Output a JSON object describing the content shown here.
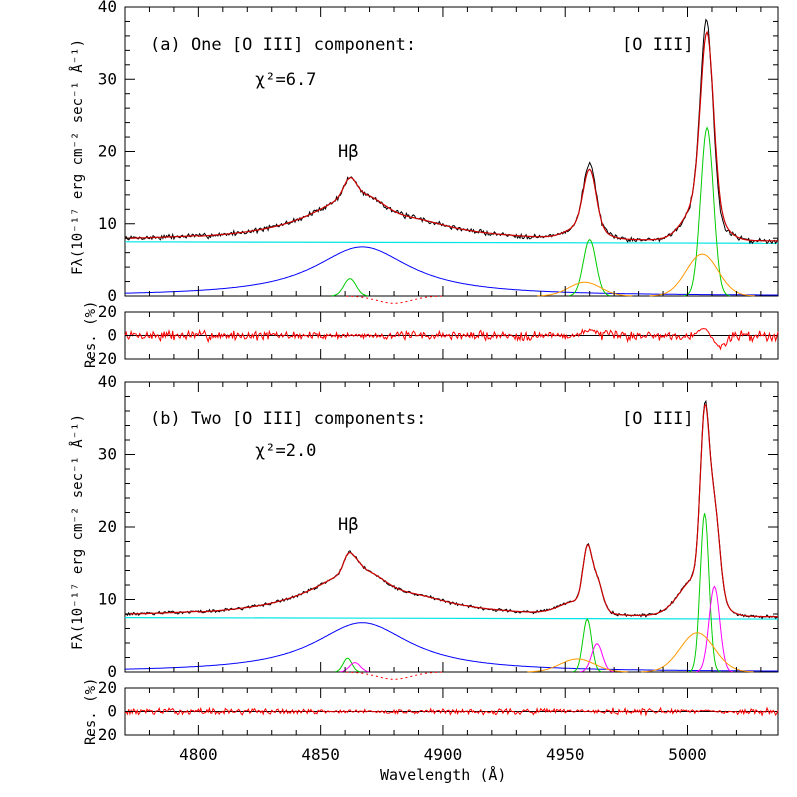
{
  "figure": {
    "x_label": "Wavelength (Å)",
    "y_label_flux": "Fλ(10⁻¹⁷ erg cm⁻² sec⁻¹ Å⁻¹)",
    "y_label_res": "Res. (%)"
  },
  "chart_data": [
    {
      "type": "line",
      "panel": "a",
      "title": "(a) One [O III] component:",
      "chi2_label": "χ²=6.7",
      "annotations": [
        "Hβ",
        "[O III]"
      ],
      "xlim": [
        4770,
        5037
      ],
      "ylim": [
        0,
        40
      ],
      "x_ticks": [
        4800,
        4850,
        4900,
        4950,
        5000
      ],
      "y_ticks": [
        0,
        10,
        20,
        30,
        40
      ],
      "continuum": 7.5,
      "components": [
        {
          "kind": "broad Hβ",
          "color": "#0000ff",
          "center": 4867,
          "amplitude": 6.8,
          "width": 24
        },
        {
          "kind": "narrow Hβ",
          "color": "#00cc00",
          "center": 4862,
          "amplitude": 2.4,
          "width": 2.5
        },
        {
          "kind": "[O III] 4959 narrow",
          "color": "#00cc00",
          "center": 4960,
          "amplitude": 7.8,
          "width": 2.6
        },
        {
          "kind": "[O III] 5007 narrow",
          "color": "#00cc00",
          "center": 5008,
          "amplitude": 23.3,
          "width": 2.6
        },
        {
          "kind": "[O III] 4959 wing",
          "color": "#ff9900",
          "center": 4958,
          "amplitude": 1.9,
          "width": 6.5
        },
        {
          "kind": "[O III] 5007 wing",
          "color": "#ff9900",
          "center": 5006,
          "amplitude": 5.8,
          "width": 6.5
        },
        {
          "kind": "absorption",
          "color": "#ff0000",
          "center": 4880,
          "amplitude": -1.0,
          "width": 7
        }
      ],
      "observed_peaks": {
        "hbeta": 16.5,
        "oiii_4959": 18.7,
        "oiii_5007": 39.0
      },
      "residual_ylim": [
        -20,
        20
      ],
      "residual_ticks": [
        -20,
        0,
        20
      ]
    },
    {
      "type": "line",
      "panel": "b",
      "title": "(b) Two [O III] components:",
      "chi2_label": "χ²=2.0",
      "annotations": [
        "Hβ",
        "[O III]"
      ],
      "xlim": [
        4770,
        5037
      ],
      "ylim": [
        0,
        40
      ],
      "x_ticks": [
        4800,
        4850,
        4900,
        4950,
        5000
      ],
      "y_ticks": [
        0,
        10,
        20,
        30,
        40
      ],
      "continuum": 7.5,
      "components": [
        {
          "kind": "broad Hβ",
          "color": "#0000ff",
          "center": 4867,
          "amplitude": 6.8,
          "width": 24
        },
        {
          "kind": "narrow Hβ",
          "color": "#00cc00",
          "center": 4861,
          "amplitude": 1.9,
          "width": 1.8
        },
        {
          "kind": "Hβ second",
          "color": "#ff00ff",
          "center": 4864,
          "amplitude": 1.3,
          "width": 2.2
        },
        {
          "kind": "[O III] 4959 narrow",
          "color": "#00cc00",
          "center": 4959,
          "amplitude": 7.3,
          "width": 1.8
        },
        {
          "kind": "[O III] 4959 second",
          "color": "#ff00ff",
          "center": 4963,
          "amplitude": 3.9,
          "width": 2.2
        },
        {
          "kind": "[O III] 5007 narrow",
          "color": "#00cc00",
          "center": 5007,
          "amplitude": 21.9,
          "width": 1.8
        },
        {
          "kind": "[O III] 5007 second",
          "color": "#ff00ff",
          "center": 5011,
          "amplitude": 11.8,
          "width": 2.2
        },
        {
          "kind": "[O III] 4959 wing",
          "color": "#ff9900",
          "center": 4955,
          "amplitude": 1.8,
          "width": 7
        },
        {
          "kind": "[O III] 5007 wing",
          "color": "#ff9900",
          "center": 5004,
          "amplitude": 5.4,
          "width": 7
        },
        {
          "kind": "absorption",
          "color": "#ff0000",
          "center": 4880,
          "amplitude": -1.0,
          "width": 7
        }
      ],
      "observed_peaks": {
        "hbeta": 16.5,
        "oiii_4959": 18.8,
        "oiii_5007": 39.3
      },
      "residual_ylim": [
        -20,
        20
      ],
      "residual_ticks": [
        -20,
        0,
        20
      ]
    }
  ]
}
